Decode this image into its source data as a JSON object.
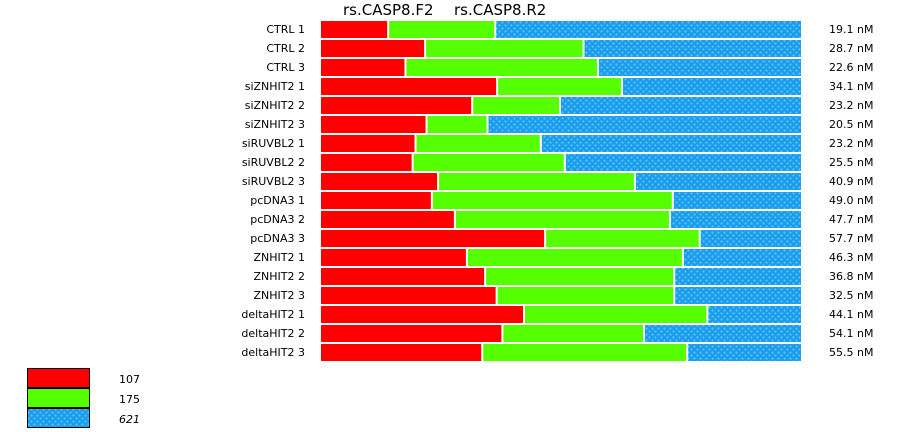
{
  "chart_data": {
    "type": "bar",
    "orientation": "horizontal",
    "stacked": true,
    "normalized": true,
    "title_parts": [
      "rs.CASP8.F2",
      "rs.CASP8.R2"
    ],
    "categories": [
      "CTRL 1",
      "CTRL 2",
      "CTRL 3",
      "siZNHIT2 1",
      "siZNHIT2 2",
      "siZNHIT2 3",
      "siRUVBL2 1",
      "siRUVBL2 2",
      "siRUVBL2 3",
      "pcDNA3 1",
      "pcDNA3 2",
      "pcDNA3 3",
      "ZNHIT2 1",
      "ZNHIT2 2",
      "ZNHIT2 3",
      "deltaHIT2 1",
      "deltaHIT2 2",
      "deltaHIT2 3"
    ],
    "right_labels": [
      "19.1 nM",
      "28.7 nM",
      "22.6 nM",
      "34.1 nM",
      "23.2 nM",
      "20.5 nM",
      "23.2 nM",
      "25.5 nM",
      "40.9 nM",
      "49.0 nM",
      "47.7 nM",
      "57.7 nM",
      "46.3 nM",
      "36.8 nM",
      "32.5 nM",
      "44.1 nM",
      "54.1 nM",
      "55.5 nM"
    ],
    "series": [
      {
        "name": "107",
        "color": "#ff0000",
        "values": [
          14.2,
          21.9,
          17.8,
          36.9,
          31.7,
          22.2,
          19.9,
          19.3,
          24.6,
          23.3,
          28.1,
          46.9,
          30.6,
          34.4,
          36.8,
          42.5,
          38.0,
          33.8
        ]
      },
      {
        "name": "175",
        "color": "#55ff00",
        "values": [
          22.3,
          33.0,
          40.1,
          26.0,
          18.3,
          12.7,
          26.1,
          31.7,
          41.0,
          50.2,
          44.8,
          32.2,
          45.0,
          39.4,
          37.0,
          38.2,
          29.5,
          42.7
        ]
      },
      {
        "name": "621",
        "color": "#1a9cec",
        "pattern": "dotted",
        "values": [
          63.5,
          45.1,
          42.1,
          37.1,
          50.0,
          65.1,
          54.0,
          49.0,
          34.4,
          26.5,
          27.1,
          20.9,
          24.4,
          26.2,
          26.2,
          19.3,
          32.5,
          23.5
        ]
      }
    ],
    "units": "percent of bar",
    "legend_position": "bottom-left",
    "grid": false
  }
}
